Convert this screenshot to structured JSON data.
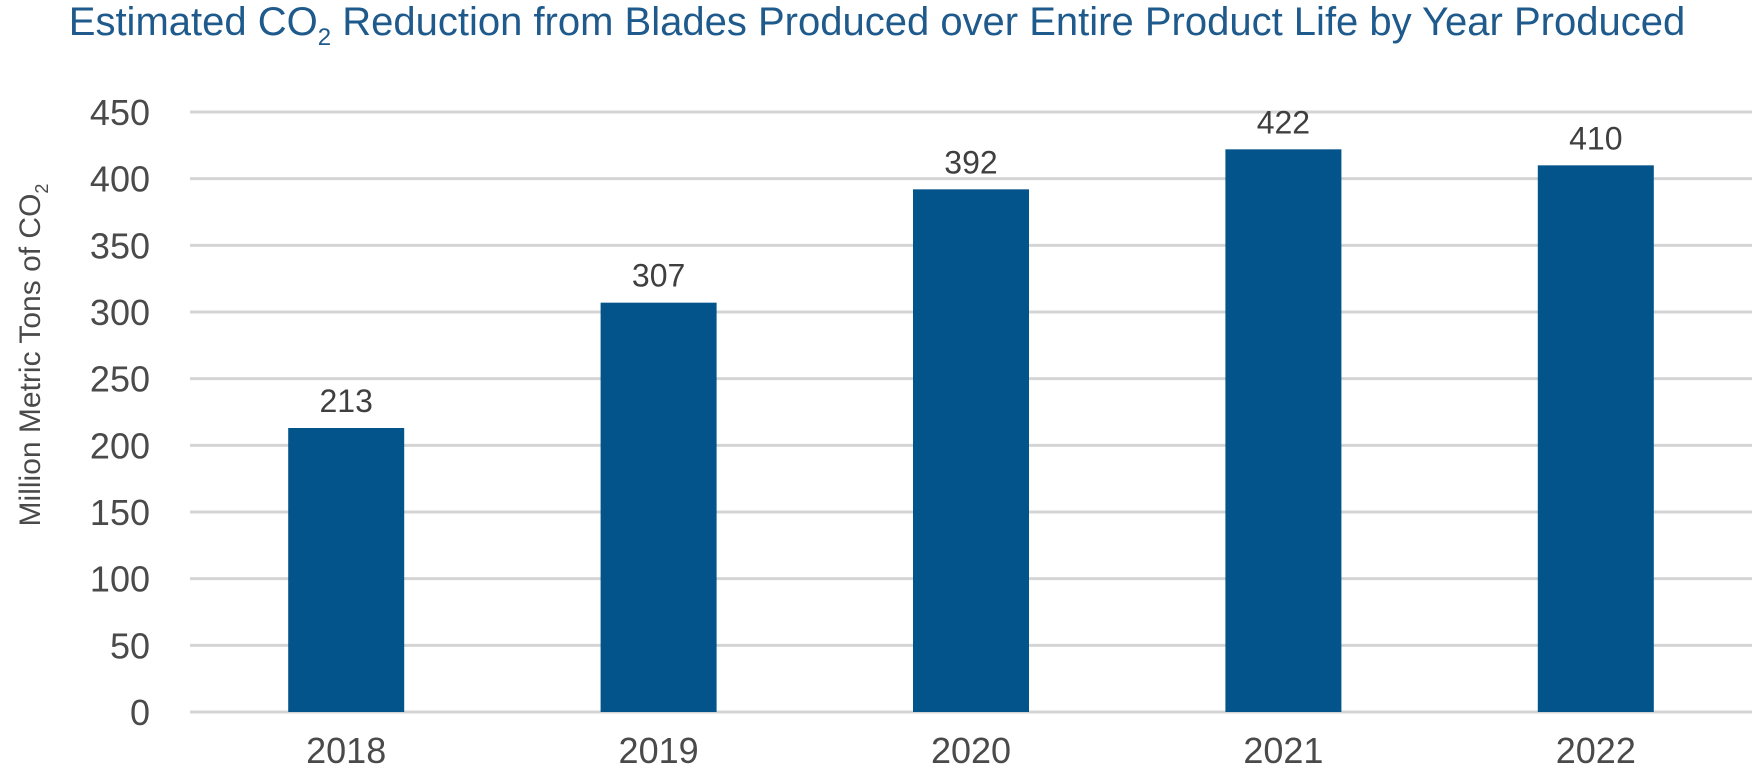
{
  "chart_data": {
    "type": "bar",
    "title_parts": [
      "Estimated CO",
      "2",
      " Reduction from Blades Produced over Entire Product Life by Year Produced"
    ],
    "ylabel_parts": [
      "Million Metric Tons of CO",
      "2"
    ],
    "xlabel": "",
    "categories": [
      "2018",
      "2019",
      "2020",
      "2021",
      "2022"
    ],
    "values": [
      213,
      307,
      392,
      422,
      410
    ],
    "data_labels": [
      "213",
      "307",
      "392",
      "422",
      "410"
    ],
    "ylim": [
      0,
      450
    ],
    "yticks": [
      0,
      50,
      100,
      150,
      200,
      250,
      300,
      350,
      400,
      450
    ],
    "grid": true,
    "legend": "none",
    "colors": {
      "bar": "#04548c",
      "title": "#1f5a8c",
      "grid": "#d4d4d4",
      "text": "#4a4a4a"
    }
  }
}
